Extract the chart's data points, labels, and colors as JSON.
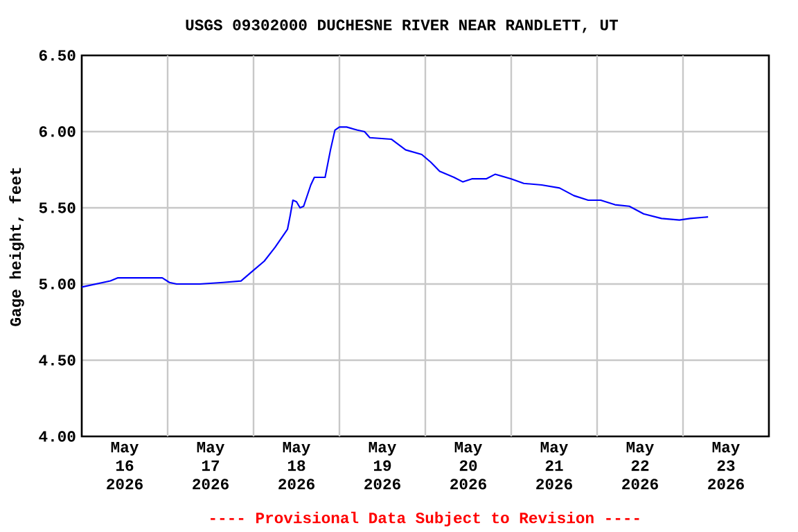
{
  "chart_data": {
    "type": "line",
    "title": "USGS 09302000 DUCHESNE RIVER NEAR RANDLETT, UT",
    "ylabel": "Gage height, feet",
    "annotations": [
      "---- Provisional Data Subject to Revision ----"
    ],
    "x": [
      "2026-05-16T00:00",
      "2026-05-16T08:00",
      "2026-05-16T10:00",
      "2026-05-16T22:30",
      "2026-05-17T00:30",
      "2026-05-17T02:30",
      "2026-05-17T09:00",
      "2026-05-17T15:30",
      "2026-05-17T20:30",
      "2026-05-18T00:00",
      "2026-05-18T03:00",
      "2026-05-18T06:00",
      "2026-05-18T09:30",
      "2026-05-18T10:15",
      "2026-05-18T11:00",
      "2026-05-18T12:00",
      "2026-05-18T13:00",
      "2026-05-18T14:00",
      "2026-05-18T16:00",
      "2026-05-18T17:00",
      "2026-05-18T20:00",
      "2026-05-18T21:30",
      "2026-05-18T22:45",
      "2026-05-19T00:00",
      "2026-05-19T02:00",
      "2026-05-19T05:00",
      "2026-05-19T07:00",
      "2026-05-19T08:30",
      "2026-05-19T14:30",
      "2026-05-19T18:30",
      "2026-05-19T23:00",
      "2026-05-20T01:30",
      "2026-05-20T04:00",
      "2026-05-20T08:00",
      "2026-05-20T10:30",
      "2026-05-20T13:00",
      "2026-05-20T17:00",
      "2026-05-20T19:30",
      "2026-05-21T00:00",
      "2026-05-21T03:30",
      "2026-05-21T08:30",
      "2026-05-21T13:30",
      "2026-05-21T17:30",
      "2026-05-21T21:30",
      "2026-05-22T01:00",
      "2026-05-22T05:00",
      "2026-05-22T09:00",
      "2026-05-22T13:00",
      "2026-05-22T18:00",
      "2026-05-22T23:00",
      "2026-05-23T02:00",
      "2026-05-23T07:00"
    ],
    "series": [
      {
        "color": "#0000ff",
        "values": [
          4.98,
          5.02,
          5.04,
          5.04,
          5.01,
          5.0,
          5.0,
          5.01,
          5.02,
          5.09,
          5.15,
          5.24,
          5.36,
          5.45,
          5.55,
          5.54,
          5.5,
          5.51,
          5.65,
          5.7,
          5.7,
          5.88,
          6.01,
          6.03,
          6.03,
          6.01,
          6.0,
          5.96,
          5.95,
          5.88,
          5.85,
          5.8,
          5.74,
          5.7,
          5.67,
          5.69,
          5.69,
          5.72,
          5.69,
          5.66,
          5.65,
          5.63,
          5.58,
          5.55,
          5.55,
          5.52,
          5.51,
          5.46,
          5.43,
          5.42,
          5.43,
          5.44
        ]
      }
    ],
    "xlim": [
      "2026-05-16T00:00",
      "2026-05-24T00:00"
    ],
    "xticks": [
      {
        "value": "2026-05-16T12:00",
        "label": "May 16 2026"
      },
      {
        "value": "2026-05-17T12:00",
        "label": "May 17 2026"
      },
      {
        "value": "2026-05-18T12:00",
        "label": "May 18 2026"
      },
      {
        "value": "2026-05-19T12:00",
        "label": "May 19 2026"
      },
      {
        "value": "2026-05-20T12:00",
        "label": "May 20 2026"
      },
      {
        "value": "2026-05-21T12:00",
        "label": "May 21 2026"
      },
      {
        "value": "2026-05-22T12:00",
        "label": "May 22 2026"
      },
      {
        "value": "2026-05-23T12:00",
        "label": "May 23 2026"
      },
      {
        "value": "2026-05-17T00:00",
        "label": null
      },
      {
        "value": "2026-05-18T00:00",
        "label": null
      },
      {
        "value": "2026-05-19T00:00",
        "label": null
      },
      {
        "value": "2026-05-20T00:00",
        "label": null
      },
      {
        "value": "2026-05-21T00:00",
        "label": null
      },
      {
        "value": "2026-05-22T00:00",
        "label": null
      },
      {
        "value": "2026-05-23T00:00",
        "label": null
      }
    ],
    "ylim": [
      4.0,
      6.5
    ],
    "yticks": [
      {
        "value": 4.0,
        "label": "4.00"
      },
      {
        "value": 4.5,
        "label": "4.50"
      },
      {
        "value": 5.0,
        "label": "5.00"
      },
      {
        "value": 5.5,
        "label": "5.50"
      },
      {
        "value": 6.0,
        "label": "6.00"
      },
      {
        "value": 6.5,
        "label": "6.50"
      }
    ],
    "grid": true,
    "marker": "none",
    "line_style": "solid"
  }
}
